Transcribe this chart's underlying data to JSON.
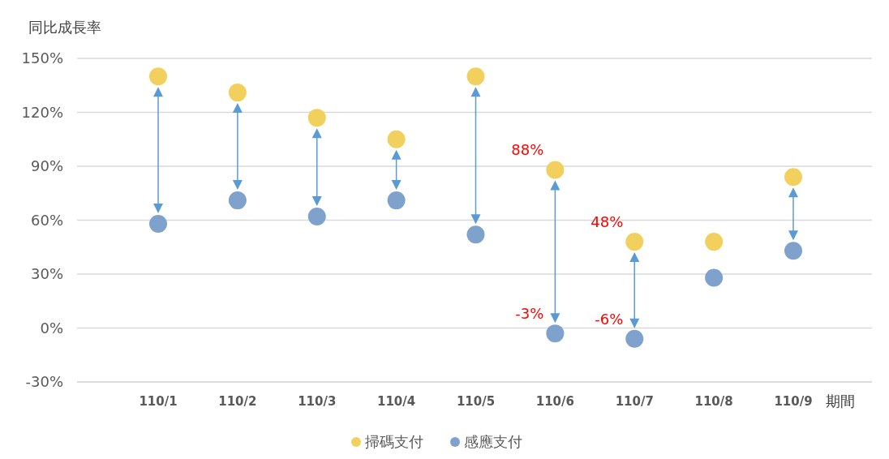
{
  "chart_data": {
    "type": "scatter",
    "ylabel": "同比成長率",
    "xlabel": "期間",
    "categories": [
      "110/1",
      "110/2",
      "110/3",
      "110/4",
      "110/5",
      "110/6",
      "110/7",
      "110/8",
      "110/9"
    ],
    "series": [
      {
        "name": "掃碼支付",
        "color": "#f2d05e",
        "values": [
          140,
          131,
          117,
          105,
          140,
          88,
          48,
          48,
          84
        ],
        "value_labels": [
          null,
          null,
          null,
          null,
          null,
          "88%",
          "48%",
          null,
          null
        ]
      },
      {
        "name": "感應支付",
        "color": "#7ea2cc",
        "values": [
          58,
          71,
          62,
          71,
          52,
          -3,
          -6,
          28,
          43
        ],
        "value_labels": [
          null,
          null,
          null,
          null,
          null,
          "-3%",
          "-6%",
          null,
          null
        ]
      }
    ],
    "ylim": [
      -30,
      150
    ],
    "yticks": [
      {
        "value": -30,
        "label": "-30%"
      },
      {
        "value": 0,
        "label": "0%"
      },
      {
        "value": 30,
        "label": "30%"
      },
      {
        "value": 60,
        "label": "60%"
      },
      {
        "value": 90,
        "label": "90%"
      },
      {
        "value": 120,
        "label": "120%"
      },
      {
        "value": 150,
        "label": "150%"
      }
    ],
    "grid": "y",
    "legend": "bottom",
    "marker": "circle"
  }
}
